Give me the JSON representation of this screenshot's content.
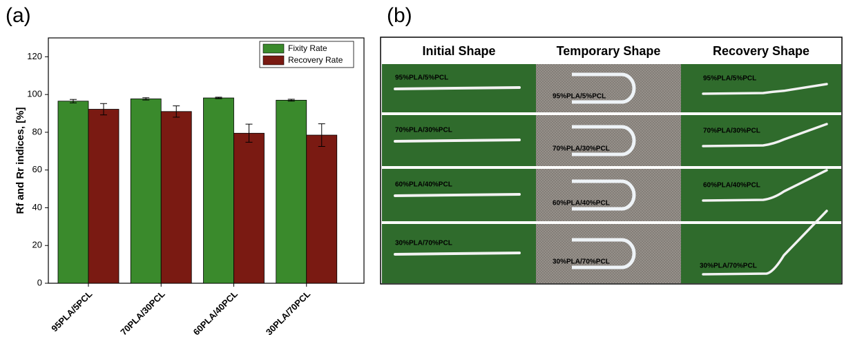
{
  "panels": {
    "a": "(a)",
    "b": "(b)"
  },
  "chart_data": {
    "type": "bar",
    "ylabel": "Rf and Rr indices, [%]",
    "categories": [
      "95PLA/5PCL",
      "70PLA/30PCL",
      "60PLA/40PCL",
      "30PLA/70PCL"
    ],
    "series": [
      {
        "name": "Fixity Rate",
        "color": "#3a8a2c",
        "values": [
          96.5,
          97.7,
          98.2,
          97.0
        ],
        "errors": [
          0.9,
          0.6,
          0.4,
          0.5
        ]
      },
      {
        "name": "Recovery Rate",
        "color": "#7a1a12",
        "values": [
          92.2,
          91.0,
          79.5,
          78.5
        ],
        "errors": [
          3.0,
          3.0,
          4.8,
          6.0
        ]
      }
    ],
    "ylim": [
      0,
      130
    ],
    "yticks": [
      0,
      20,
      40,
      60,
      80,
      100,
      120
    ],
    "legend": "upper right"
  },
  "photo_grid": {
    "headers": [
      "Initial Shape",
      "Temporary Shape",
      "Recovery Shape"
    ],
    "rows": [
      "95%PLA/5%PCL",
      "70%PLA/30%PCL",
      "60%PLA/40%PCL",
      "30%PLA/70%PCL"
    ]
  }
}
